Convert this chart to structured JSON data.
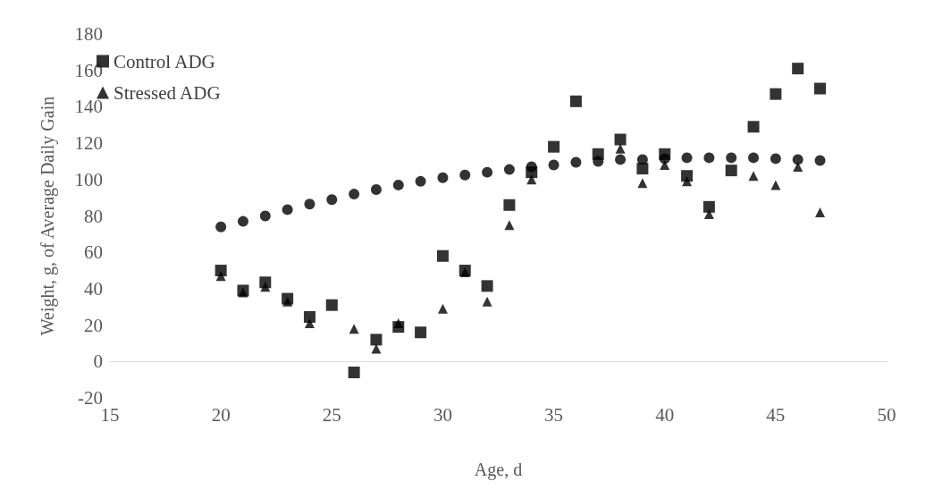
{
  "chart_data": {
    "type": "scatter",
    "xlabel": "Age, d",
    "ylabel": "Weight, g, of Average Daily Gain",
    "x": [
      20,
      21,
      22,
      23,
      24,
      25,
      26,
      27,
      28,
      29,
      30,
      31,
      32,
      33,
      34,
      35,
      36,
      37,
      38,
      39,
      40,
      41,
      42,
      43,
      44,
      45,
      46,
      47
    ],
    "series": [
      {
        "name": "Control ADG",
        "color": "#000000",
        "marker": "square",
        "values": [
          50,
          39,
          43.5,
          34.5,
          24.5,
          31,
          -6,
          12,
          19,
          16,
          58,
          50,
          41.5,
          86,
          104,
          118,
          143,
          114,
          122,
          106,
          114,
          102,
          85,
          105,
          129,
          147,
          161,
          150
        ]
      },
      {
        "name": "Stressed ADG",
        "color": "#000000",
        "marker": "triangle",
        "values": [
          47,
          38,
          41,
          33,
          21,
          null,
          18,
          7,
          21,
          null,
          29,
          49,
          33,
          75,
          100,
          null,
          null,
          null,
          117,
          98,
          108,
          99,
          81,
          null,
          102,
          97,
          107,
          82
        ]
      },
      {
        "color": "#000000",
        "marker": "circle",
        "values": [
          74,
          77,
          80,
          83.5,
          86.5,
          89,
          92,
          94.5,
          97,
          99,
          101,
          102.5,
          104,
          105.5,
          107,
          108,
          109.5,
          110,
          111,
          111,
          111.5,
          112,
          112,
          112,
          112,
          111.5,
          111,
          110.5
        ]
      }
    ],
    "xlim": [
      15,
      50
    ],
    "xticks": [
      15,
      20,
      25,
      30,
      35,
      40,
      45,
      50
    ],
    "ylim": [
      -20,
      180
    ],
    "yticks": [
      -20,
      0,
      20,
      40,
      60,
      80,
      100,
      120,
      140,
      160,
      180
    ],
    "grid": false,
    "legend": "top left"
  }
}
